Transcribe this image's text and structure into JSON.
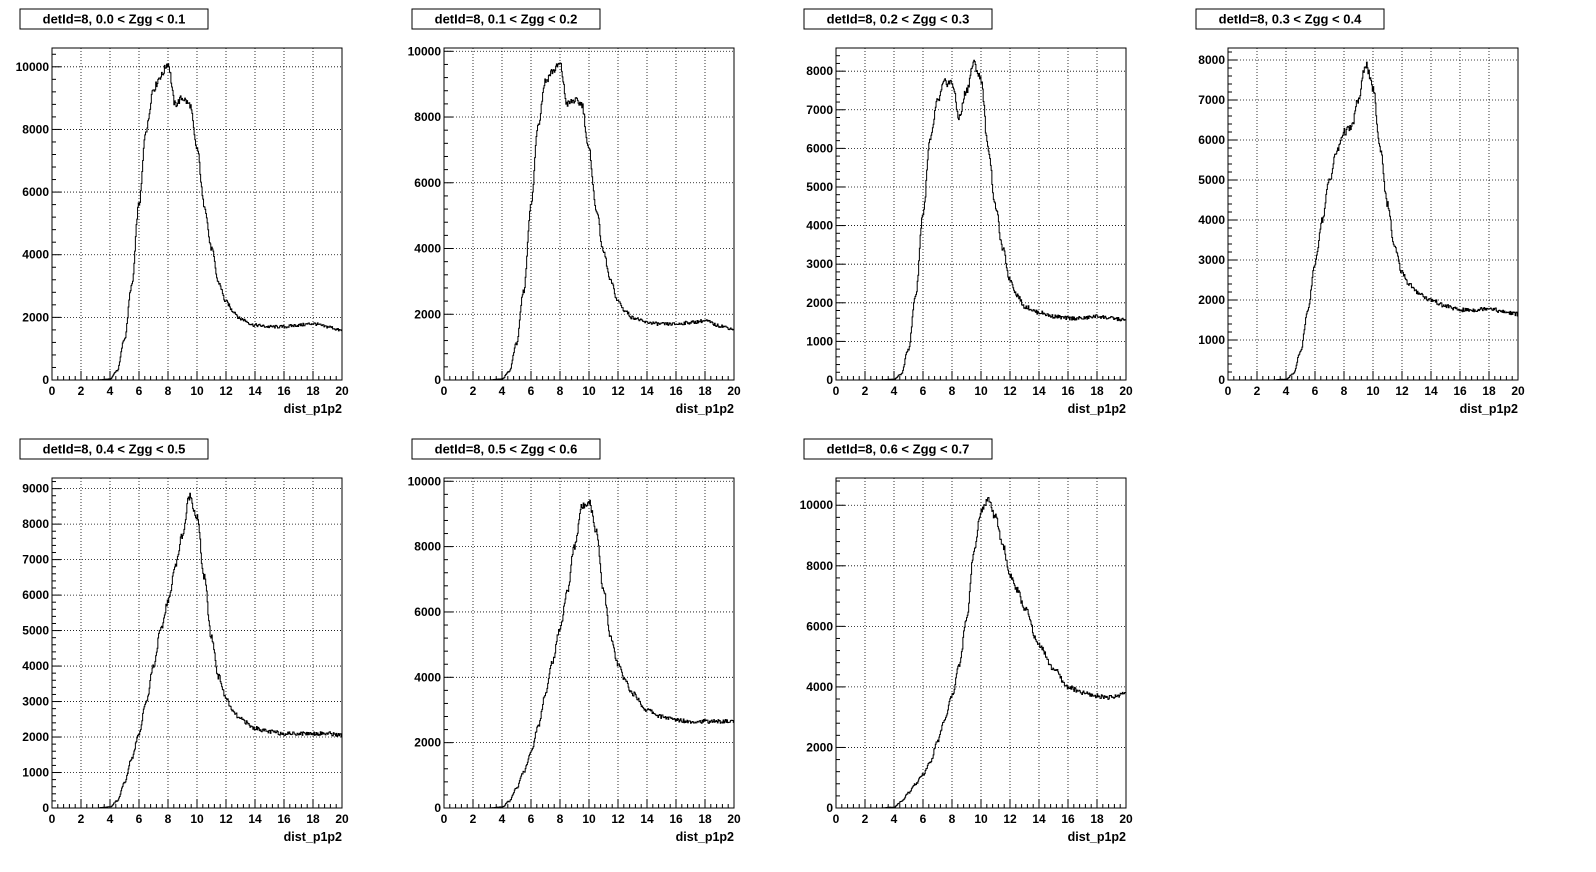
{
  "chart_data": [
    {
      "type": "line",
      "title": "detId=8, 0.0 < Zgg < 0.1",
      "xlabel": "dist_p1p2",
      "ylabel": "",
      "xlim": [
        0,
        20
      ],
      "ylim": [
        0,
        10600
      ],
      "grid": true,
      "xticks": [
        0,
        2,
        4,
        6,
        8,
        10,
        12,
        14,
        16,
        18,
        20
      ],
      "yticks": [
        0,
        2000,
        4000,
        6000,
        8000,
        10000
      ],
      "x": [
        0,
        1,
        2,
        3,
        4,
        4.5,
        5,
        5.5,
        6,
        6.5,
        7,
        7.5,
        8,
        8.5,
        9,
        9.5,
        10,
        10.5,
        11,
        11.5,
        12,
        12.5,
        13,
        14,
        15,
        16,
        17,
        18,
        19,
        20
      ],
      "y": [
        0,
        0,
        0,
        0,
        30,
        300,
        1300,
        3000,
        5600,
        8000,
        9300,
        9700,
        10100,
        8800,
        9000,
        8800,
        7400,
        5600,
        4200,
        3100,
        2500,
        2200,
        1950,
        1750,
        1700,
        1700,
        1750,
        1800,
        1700,
        1580
      ]
    },
    {
      "type": "line",
      "title": "detId=8, 0.1 < Zgg < 0.2",
      "xlabel": "dist_p1p2",
      "ylabel": "",
      "xlim": [
        0,
        20
      ],
      "ylim": [
        0,
        10100
      ],
      "grid": true,
      "xticks": [
        0,
        2,
        4,
        6,
        8,
        10,
        12,
        14,
        16,
        18,
        20
      ],
      "yticks": [
        0,
        2000,
        4000,
        6000,
        8000,
        10000
      ],
      "x": [
        0,
        1,
        2,
        3,
        4,
        4.5,
        5,
        5.5,
        6,
        6.5,
        7,
        7.5,
        8,
        8.5,
        9,
        9.5,
        10,
        10.5,
        11,
        11.5,
        12,
        12.5,
        13,
        14,
        15,
        16,
        17,
        18,
        19,
        20
      ],
      "y": [
        0,
        0,
        0,
        0,
        30,
        250,
        1100,
        2700,
        5300,
        7800,
        9100,
        9400,
        9600,
        8400,
        8500,
        8400,
        7000,
        5200,
        3900,
        3000,
        2400,
        2100,
        1900,
        1750,
        1700,
        1700,
        1750,
        1800,
        1650,
        1550
      ]
    },
    {
      "type": "line",
      "title": "detId=8, 0.2 < Zgg < 0.3",
      "xlabel": "dist_p1p2",
      "ylabel": "",
      "xlim": [
        0,
        20
      ],
      "ylim": [
        0,
        8600
      ],
      "grid": true,
      "xticks": [
        0,
        2,
        4,
        6,
        8,
        10,
        12,
        14,
        16,
        18,
        20
      ],
      "yticks": [
        0,
        1000,
        2000,
        3000,
        4000,
        5000,
        6000,
        7000,
        8000
      ],
      "x": [
        0,
        1,
        2,
        3,
        4,
        4.5,
        5,
        5.5,
        6,
        6.5,
        7,
        7.5,
        8,
        8.5,
        9,
        9.5,
        10,
        10.5,
        11,
        11.5,
        12,
        12.5,
        13,
        14,
        15,
        16,
        17,
        18,
        19,
        20
      ],
      "y": [
        0,
        0,
        0,
        0,
        20,
        150,
        800,
        2200,
        4300,
        6200,
        7200,
        7700,
        7700,
        6800,
        7500,
        8200,
        7800,
        6000,
        4500,
        3400,
        2600,
        2200,
        1900,
        1750,
        1650,
        1600,
        1600,
        1650,
        1600,
        1550
      ]
    },
    {
      "type": "line",
      "title": "detId=8, 0.3 < Zgg < 0.4",
      "xlabel": "dist_p1p2",
      "ylabel": "",
      "xlim": [
        0,
        20
      ],
      "ylim": [
        0,
        8300
      ],
      "grid": true,
      "xticks": [
        0,
        2,
        4,
        6,
        8,
        10,
        12,
        14,
        16,
        18,
        20
      ],
      "yticks": [
        0,
        1000,
        2000,
        3000,
        4000,
        5000,
        6000,
        7000,
        8000
      ],
      "x": [
        0,
        1,
        2,
        3,
        4,
        4.5,
        5,
        5.5,
        6,
        6.5,
        7,
        7.5,
        8,
        8.5,
        9,
        9.5,
        10,
        10.5,
        11,
        11.5,
        12,
        12.5,
        13,
        14,
        15,
        16,
        17,
        18,
        19,
        20
      ],
      "y": [
        0,
        0,
        0,
        0,
        20,
        150,
        700,
        1700,
        2900,
        4000,
        5000,
        5700,
        6200,
        6300,
        7000,
        7900,
        7300,
        5800,
        4400,
        3300,
        2700,
        2400,
        2200,
        2000,
        1850,
        1750,
        1750,
        1800,
        1700,
        1650
      ]
    },
    {
      "type": "line",
      "title": "detId=8, 0.4 < Zgg < 0.5",
      "xlabel": "dist_p1p2",
      "ylabel": "",
      "xlim": [
        0,
        20
      ],
      "ylim": [
        0,
        9300
      ],
      "grid": true,
      "xticks": [
        0,
        2,
        4,
        6,
        8,
        10,
        12,
        14,
        16,
        18,
        20
      ],
      "yticks": [
        0,
        1000,
        2000,
        3000,
        4000,
        5000,
        6000,
        7000,
        8000,
        9000
      ],
      "x": [
        0,
        1,
        2,
        3,
        4,
        4.5,
        5,
        5.5,
        6,
        6.5,
        7,
        7.5,
        8,
        8.5,
        9,
        9.5,
        10,
        10.5,
        11,
        11.5,
        12,
        12.5,
        13,
        14,
        15,
        16,
        17,
        18,
        19,
        20
      ],
      "y": [
        0,
        0,
        0,
        0,
        30,
        200,
        700,
        1400,
        2100,
        3000,
        4000,
        5000,
        5800,
        6800,
        7700,
        8800,
        8200,
        6500,
        4800,
        3700,
        3100,
        2700,
        2500,
        2250,
        2150,
        2100,
        2100,
        2100,
        2100,
        2050
      ]
    },
    {
      "type": "line",
      "title": "detId=8, 0.5 < Zgg < 0.6",
      "xlabel": "dist_p1p2",
      "ylabel": "",
      "xlim": [
        0,
        20
      ],
      "ylim": [
        0,
        10100
      ],
      "grid": true,
      "xticks": [
        0,
        2,
        4,
        6,
        8,
        10,
        12,
        14,
        16,
        18,
        20
      ],
      "yticks": [
        0,
        2000,
        4000,
        6000,
        8000,
        10000
      ],
      "x": [
        0,
        1,
        2,
        3,
        4,
        4.5,
        5,
        5.5,
        6,
        6.5,
        7,
        7.5,
        8,
        8.5,
        9,
        9.5,
        10,
        10.5,
        11,
        11.5,
        12,
        12.5,
        13,
        14,
        15,
        16,
        17,
        18,
        19,
        20
      ],
      "y": [
        0,
        0,
        0,
        0,
        30,
        200,
        600,
        1100,
        1700,
        2500,
        3500,
        4500,
        5500,
        6600,
        8000,
        9200,
        9400,
        8500,
        6700,
        5200,
        4400,
        3900,
        3500,
        3000,
        2800,
        2700,
        2650,
        2650,
        2650,
        2650
      ]
    },
    {
      "type": "line",
      "title": "detId=8, 0.6 < Zgg < 0.7",
      "xlabel": "dist_p1p2",
      "ylabel": "",
      "xlim": [
        0,
        20
      ],
      "ylim": [
        0,
        10900
      ],
      "grid": true,
      "xticks": [
        0,
        2,
        4,
        6,
        8,
        10,
        12,
        14,
        16,
        18,
        20
      ],
      "yticks": [
        0,
        2000,
        4000,
        6000,
        8000,
        10000
      ],
      "x": [
        0,
        1,
        2,
        3,
        4,
        4.5,
        5,
        5.5,
        6,
        6.5,
        7,
        7.5,
        8,
        8.5,
        9,
        9.5,
        10,
        10.5,
        11,
        11.5,
        12,
        12.5,
        13,
        14,
        15,
        16,
        17,
        18,
        19,
        20
      ],
      "y": [
        0,
        0,
        0,
        0,
        30,
        200,
        500,
        800,
        1100,
        1500,
        2200,
        2900,
        3700,
        4700,
        6200,
        8400,
        9800,
        10200,
        9600,
        8700,
        7700,
        7200,
        6600,
        5400,
        4600,
        4000,
        3800,
        3700,
        3650,
        3800
      ]
    }
  ]
}
